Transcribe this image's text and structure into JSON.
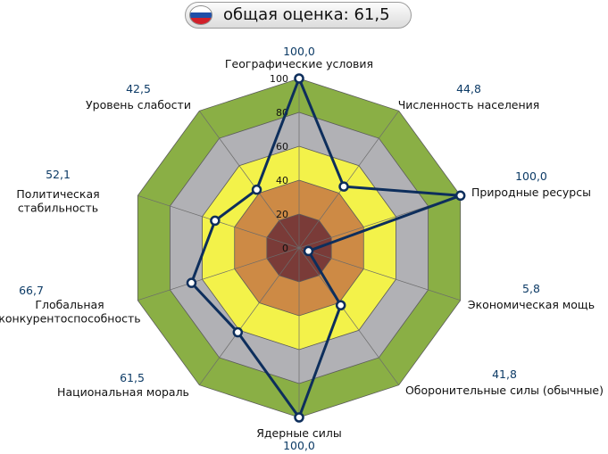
{
  "header": {
    "title": "общая оценка: 61,5",
    "flag_colors": [
      "#ffffff",
      "#1f4fa8",
      "#d0202a"
    ],
    "flag_icon": "russia-flag-icon"
  },
  "chart_data": {
    "type": "radar",
    "title": "общая оценка: 61,5",
    "r_range": [
      0,
      100
    ],
    "r_ticks": [
      0,
      20,
      40,
      60,
      80,
      100
    ],
    "r_tick_labels": [
      "0",
      "20",
      "40",
      "60",
      "80",
      "100"
    ],
    "band_colors": [
      "#7a3b38",
      "#cd8a45",
      "#f3f24a",
      "#b1b1b5",
      "#8aaf45"
    ],
    "line_color": "#0d2e5c",
    "axes": [
      {
        "label": "Географические условия",
        "value": 100.0,
        "value_label": "100,0"
      },
      {
        "label": "Численность населения",
        "value": 44.8,
        "value_label": "44,8"
      },
      {
        "label": "Природные ресурсы",
        "value": 100.0,
        "value_label": "100,0"
      },
      {
        "label": "Экономическая мощь",
        "value": 5.8,
        "value_label": "5,8"
      },
      {
        "label": "Оборонительные силы (обычные)",
        "value": 41.8,
        "value_label": "41,8"
      },
      {
        "label": "Ядерные силы",
        "value": 100.0,
        "value_label": "100,0"
      },
      {
        "label": "Национальная мораль",
        "value": 61.5,
        "value_label": "61,5"
      },
      {
        "label": "Глобальная конкурентоспособность",
        "value": 66.7,
        "value_label": "66,7"
      },
      {
        "label": "Политическая стабильность",
        "value": 52.1,
        "value_label": "52,1"
      },
      {
        "label": "Уровень слабости",
        "value": 42.5,
        "value_label": "42,5"
      }
    ]
  }
}
